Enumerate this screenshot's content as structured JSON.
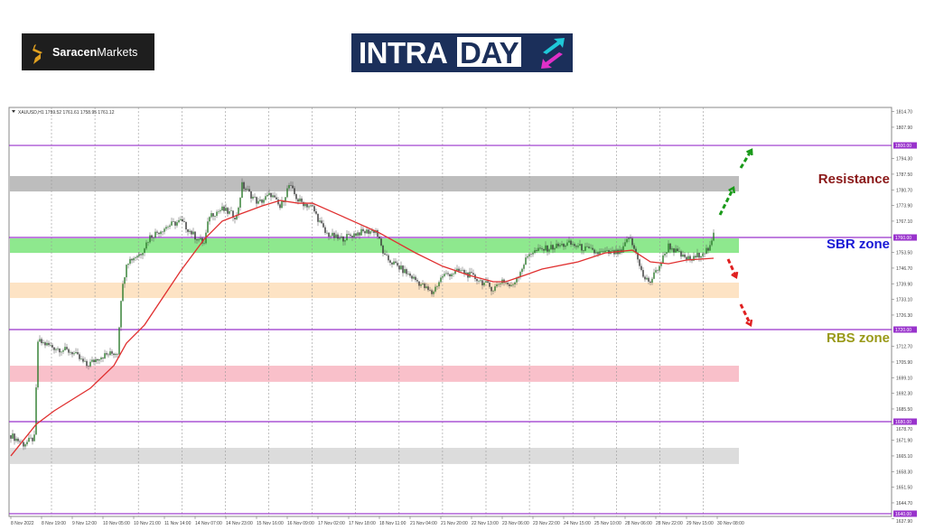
{
  "logos": {
    "saracen": {
      "bold": "Saracen",
      "light": "Markets"
    },
    "intraday": {
      "part1": "INTRA",
      "part2": "DAY"
    }
  },
  "chart_data": {
    "type": "candlestick",
    "symbol_header": "XAUUSD,H1  1759.52 1761.61 1758.95 1761.12",
    "ylim": [
      1638.8,
      1816.5
    ],
    "y_ticks": [
      "1814.70",
      "1807.90",
      "1794.30",
      "1787.50",
      "1780.70",
      "1773.90",
      "1767.10",
      "1753.50",
      "1746.70",
      "1739.90",
      "1733.10",
      "1726.30",
      "1712.70",
      "1705.90",
      "1699.10",
      "1692.30",
      "1685.50",
      "1678.70",
      "1671.90",
      "1665.10",
      "1658.30",
      "1651.50",
      "1644.70",
      "1637.90"
    ],
    "y_tick_values": [
      1814.7,
      1807.9,
      1794.3,
      1787.5,
      1780.7,
      1773.9,
      1767.1,
      1753.5,
      1746.7,
      1739.9,
      1733.1,
      1726.3,
      1712.7,
      1705.9,
      1699.1,
      1692.3,
      1685.5,
      1678.7,
      1671.9,
      1665.1,
      1658.3,
      1651.5,
      1644.7,
      1637.9
    ],
    "x_ticks": [
      "8 Nov 2022",
      "8 Nov 19:00",
      "9 Nov 12:00",
      "10 Nov 05:00",
      "10 Nov 21:00",
      "11 Nov 14:00",
      "14 Nov 07:00",
      "14 Nov 23:00",
      "15 Nov 16:00",
      "16 Nov 09:00",
      "17 Nov 02:00",
      "17 Nov 18:00",
      "18 Nov 11:00",
      "21 Nov 04:00",
      "21 Nov 20:00",
      "22 Nov 13:00",
      "23 Nov 06:00",
      "23 Nov 22:00",
      "24 Nov 15:00",
      "25 Nov 10:00",
      "28 Nov 06:00",
      "28 Nov 22:00",
      "29 Nov 15:00",
      "30 Nov 08:00"
    ],
    "grid": true,
    "levels": [
      {
        "price": 1800.0,
        "label": "1800.00"
      },
      {
        "price": 1760.0,
        "label": "1760.00"
      },
      {
        "price": 1720.0,
        "label": "1720.00"
      },
      {
        "price": 1680.0,
        "label": "1680.00"
      },
      {
        "price": 1640.0,
        "label": "1640.00"
      }
    ],
    "level_color": "#9933cc",
    "zones": [
      {
        "from": 1780.0,
        "to": 1786.7,
        "color": "#bdbdbd"
      },
      {
        "from": 1753.3,
        "to": 1759.6,
        "color": "#8ee88e"
      },
      {
        "from": 1733.7,
        "to": 1740.4,
        "color": "#fde3c4"
      },
      {
        "from": 1697.3,
        "to": 1704.3,
        "color": "#f9c0ca"
      },
      {
        "from": 1661.6,
        "to": 1668.6,
        "color": "#dcdcdc"
      }
    ],
    "zone_labels": [
      {
        "text": "Resistance",
        "price": 1785,
        "color": "#8b1a1a"
      },
      {
        "text": "SBR zone",
        "price": 1757,
        "color": "#1a1ad6"
      },
      {
        "text": "RBS zone",
        "price": 1716,
        "color": "#9a9a1a"
      }
    ],
    "price_path": [
      [
        0,
        1674.1
      ],
      [
        7,
        1670.2
      ],
      [
        13,
        1672.9
      ],
      [
        15,
        1714.9
      ],
      [
        24,
        1712.2
      ],
      [
        34,
        1710.2
      ],
      [
        42,
        1704.3
      ],
      [
        49,
        1708.2
      ],
      [
        59,
        1710.2
      ],
      [
        61,
        1733.7
      ],
      [
        64,
        1749.4
      ],
      [
        72,
        1753.3
      ],
      [
        77,
        1760.4
      ],
      [
        87,
        1765.1
      ],
      [
        94,
        1767.1
      ],
      [
        102,
        1760.4
      ],
      [
        107,
        1757.3
      ],
      [
        110,
        1769.8
      ],
      [
        117,
        1772.2
      ],
      [
        125,
        1769.0
      ],
      [
        128,
        1782.7
      ],
      [
        137,
        1774.9
      ],
      [
        144,
        1778.8
      ],
      [
        149,
        1772.9
      ],
      [
        154,
        1782.7
      ],
      [
        159,
        1776.1
      ],
      [
        167,
        1772.9
      ],
      [
        174,
        1762.0
      ],
      [
        182,
        1759.2
      ],
      [
        192,
        1762.0
      ],
      [
        202,
        1763.1
      ],
      [
        207,
        1751.4
      ],
      [
        214,
        1747.5
      ],
      [
        224,
        1741.6
      ],
      [
        233,
        1735.7
      ],
      [
        239,
        1743.5
      ],
      [
        249,
        1745.5
      ],
      [
        259,
        1741.6
      ],
      [
        267,
        1737.6
      ],
      [
        272,
        1741.6
      ],
      [
        277,
        1738.4
      ],
      [
        282,
        1745.5
      ],
      [
        287,
        1753.3
      ],
      [
        297,
        1755.3
      ],
      [
        309,
        1757.3
      ],
      [
        317,
        1755.3
      ],
      [
        324,
        1753.3
      ],
      [
        330,
        1753.3
      ],
      [
        338,
        1753.3
      ],
      [
        342,
        1760.4
      ],
      [
        347,
        1751.4
      ],
      [
        350,
        1742.4
      ],
      [
        354,
        1740.8
      ],
      [
        360,
        1749.4
      ],
      [
        364,
        1756.5
      ],
      [
        372,
        1751.4
      ],
      [
        377,
        1750.2
      ],
      [
        382,
        1753.3
      ],
      [
        387,
        1755.3
      ],
      [
        389,
        1761.1
      ]
    ],
    "moving_average": {
      "color": "#e03030",
      "points": [
        [
          0,
          1665.1
        ],
        [
          14,
          1678.8
        ],
        [
          24,
          1684.7
        ],
        [
          44,
          1694.5
        ],
        [
          57,
          1704.3
        ],
        [
          64,
          1714.1
        ],
        [
          74,
          1722.0
        ],
        [
          94,
          1745.5
        ],
        [
          107,
          1759.2
        ],
        [
          117,
          1767.1
        ],
        [
          127,
          1770.2
        ],
        [
          139,
          1773.7
        ],
        [
          149,
          1776.1
        ],
        [
          159,
          1774.9
        ],
        [
          167,
          1774.9
        ],
        [
          184,
          1769.0
        ],
        [
          204,
          1762.0
        ],
        [
          224,
          1753.3
        ],
        [
          239,
          1747.5
        ],
        [
          254,
          1743.5
        ],
        [
          267,
          1740.8
        ],
        [
          274,
          1740.8
        ],
        [
          284,
          1743.5
        ],
        [
          294,
          1746.3
        ],
        [
          314,
          1749.4
        ],
        [
          329,
          1753.3
        ],
        [
          344,
          1754.5
        ],
        [
          354,
          1749.4
        ],
        [
          364,
          1748.6
        ],
        [
          374,
          1750.2
        ],
        [
          389,
          1751.0
        ]
      ]
    },
    "arrows": [
      {
        "direction": "up",
        "color": "#1a9a1a"
      },
      {
        "direction": "up",
        "color": "#1a9a1a"
      },
      {
        "direction": "down",
        "color": "#e02020"
      },
      {
        "direction": "down",
        "color": "#e02020"
      }
    ],
    "candle_colors": {
      "up": "#2b7a2b",
      "down": "#333333"
    }
  }
}
